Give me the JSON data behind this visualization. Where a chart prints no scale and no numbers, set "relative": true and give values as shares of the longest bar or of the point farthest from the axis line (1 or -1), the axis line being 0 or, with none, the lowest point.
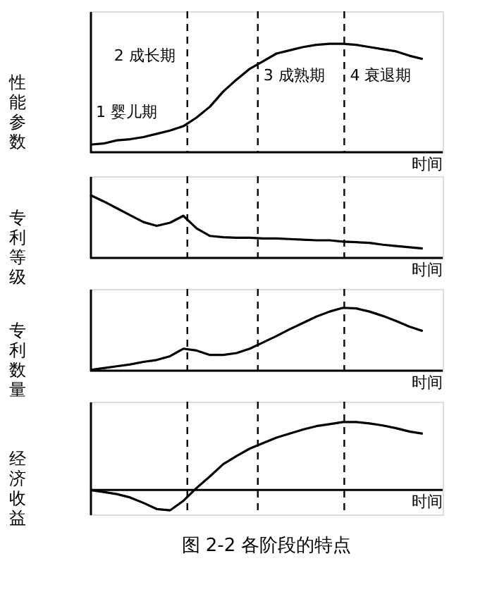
{
  "chart_data": [
    {
      "type": "line",
      "relative": true,
      "ylabel": "性能参数",
      "xlabel": "时间",
      "color": "#000000",
      "categories": [
        null,
        null,
        null,
        null,
        null,
        null,
        null,
        null,
        null,
        null,
        null,
        null,
        null,
        null,
        null,
        null,
        null,
        null,
        null,
        null,
        null,
        null,
        null,
        null,
        null,
        null
      ],
      "values": [
        0.07,
        0.08,
        0.11,
        0.12,
        0.14,
        0.17,
        0.2,
        0.24,
        0.32,
        0.42,
        0.56,
        0.67,
        0.77,
        0.84,
        0.91,
        0.94,
        0.97,
        0.99,
        1,
        1,
        0.99,
        0.97,
        0.95,
        0.93,
        0.89,
        0.86
      ],
      "annotations": [
        "1 婴儿期",
        "2 成长期",
        "3 成熟期",
        "4 衰退期"
      ]
    },
    {
      "type": "line",
      "relative": true,
      "ylabel": "专利等级",
      "xlabel": "时间",
      "color": "#000000",
      "categories": [
        null,
        null,
        null,
        null,
        null,
        null,
        null,
        null,
        null,
        null,
        null,
        null,
        null,
        null,
        null,
        null,
        null,
        null,
        null,
        null,
        null,
        null,
        null,
        null,
        null,
        null
      ],
      "values": [
        1,
        0.9,
        0.79,
        0.68,
        0.57,
        0.51,
        0.56,
        0.67,
        0.47,
        0.35,
        0.33,
        0.32,
        0.32,
        0.31,
        0.31,
        0.3,
        0.29,
        0.28,
        0.28,
        0.26,
        0.25,
        0.24,
        0.21,
        0.19,
        0.17,
        0.15
      ]
    },
    {
      "type": "line",
      "relative": true,
      "ylabel": "专利数量",
      "xlabel": "时间",
      "color": "#000000",
      "categories": [
        null,
        null,
        null,
        null,
        null,
        null,
        null,
        null,
        null,
        null,
        null,
        null,
        null,
        null,
        null,
        null,
        null,
        null,
        null,
        null,
        null,
        null,
        null,
        null,
        null,
        null
      ],
      "values": [
        0.01,
        0.04,
        0.07,
        0.1,
        0.14,
        0.17,
        0.23,
        0.35,
        0.32,
        0.25,
        0.25,
        0.28,
        0.35,
        0.45,
        0.55,
        0.66,
        0.76,
        0.86,
        0.94,
        1,
        0.99,
        0.94,
        0.87,
        0.79,
        0.7,
        0.63
      ]
    },
    {
      "type": "line",
      "relative": true,
      "ylabel": "经济收益",
      "xlabel": "时间",
      "title": "图 2-2   各阶段的特点",
      "color": "#000000",
      "categories": [
        null,
        null,
        null,
        null,
        null,
        null,
        null,
        null,
        null,
        null,
        null,
        null,
        null,
        null,
        null,
        null,
        null,
        null,
        null,
        null,
        null,
        null,
        null,
        null,
        null,
        null
      ],
      "values": [
        0,
        -0.03,
        -0.06,
        -0.11,
        -0.19,
        -0.28,
        -0.3,
        -0.16,
        0.03,
        0.2,
        0.38,
        0.5,
        0.61,
        0.69,
        0.77,
        0.83,
        0.89,
        0.94,
        0.97,
        1,
        1,
        0.98,
        0.95,
        0.91,
        0.86,
        0.83
      ]
    }
  ]
}
